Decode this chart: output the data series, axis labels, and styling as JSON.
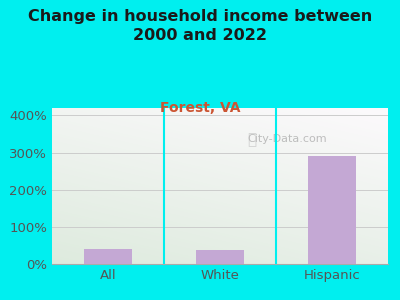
{
  "title": "Change in household income between\n2000 and 2022",
  "subtitle": "Forest, VA",
  "categories": [
    "All",
    "White",
    "Hispanic"
  ],
  "values": [
    40,
    38,
    290
  ],
  "bar_color": "#c4a8d4",
  "background_color": "#00efef",
  "plot_bg_topleft": "#d8e8d0",
  "plot_bg_topright": "#e8eee8",
  "plot_bg_bottom": "#f0f5ec",
  "title_color": "#1a1a1a",
  "subtitle_color": "#cc5533",
  "tick_color": "#555555",
  "grid_color": "#cccccc",
  "divider_color": "#00efef",
  "ylabel_ticks": [
    0,
    100,
    200,
    300,
    400
  ],
  "ylim": [
    0,
    420
  ],
  "watermark": "City-Data.com",
  "title_fontsize": 11.5,
  "subtitle_fontsize": 10,
  "tick_fontsize": 9.5
}
